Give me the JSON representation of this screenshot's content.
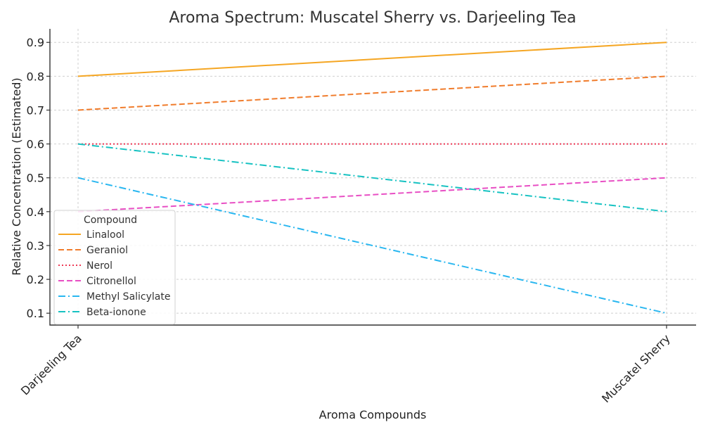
{
  "chart_data": {
    "type": "line",
    "title": "Aroma Spectrum: Muscatel Sherry vs. Darjeeling Tea",
    "xlabel": "Aroma Compounds",
    "ylabel": "Relative Concentration (Estimated)",
    "categories": [
      "Darjeeling Tea",
      "Muscatel Sherry"
    ],
    "ylim": [
      0.065,
      0.94
    ],
    "yticks": [
      "0.1",
      "0.2",
      "0.3",
      "0.4",
      "0.5",
      "0.6",
      "0.7",
      "0.8",
      "0.9"
    ],
    "grid": true,
    "legend": {
      "title": "Compound",
      "placement": "lower-left"
    },
    "series": [
      {
        "name": "Linalool",
        "values": [
          0.8,
          0.9
        ],
        "color": "#f5a623",
        "dash": "solid"
      },
      {
        "name": "Geraniol",
        "values": [
          0.7,
          0.8
        ],
        "color": "#f07c2c",
        "dash": "dashed"
      },
      {
        "name": "Nerol",
        "values": [
          0.6,
          0.6
        ],
        "color": "#ee3a57",
        "dash": "dotted"
      },
      {
        "name": "Citronellol",
        "values": [
          0.4,
          0.5
        ],
        "color": "#e84fc4",
        "dash": "dashed"
      },
      {
        "name": "Methyl Salicylate",
        "values": [
          0.5,
          0.1
        ],
        "color": "#2ab7f0",
        "dash": "dashdot"
      },
      {
        "name": "Beta-ionone",
        "values": [
          0.6,
          0.4
        ],
        "color": "#17c2c2",
        "dash": "dashdot"
      }
    ]
  }
}
